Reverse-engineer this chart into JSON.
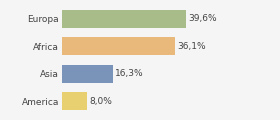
{
  "categories": [
    "Europa",
    "Africa",
    "Asia",
    "America"
  ],
  "values": [
    39.6,
    36.1,
    16.3,
    8.0
  ],
  "labels": [
    "39,6%",
    "36,1%",
    "16,3%",
    "8,0%"
  ],
  "bar_colors": [
    "#a8bc8a",
    "#e8b97a",
    "#7a93b8",
    "#e8d070"
  ],
  "background_color": "#f5f5f5",
  "xlim": [
    0,
    50
  ],
  "label_fontsize": 6.5,
  "category_fontsize": 6.5,
  "bar_height": 0.65
}
